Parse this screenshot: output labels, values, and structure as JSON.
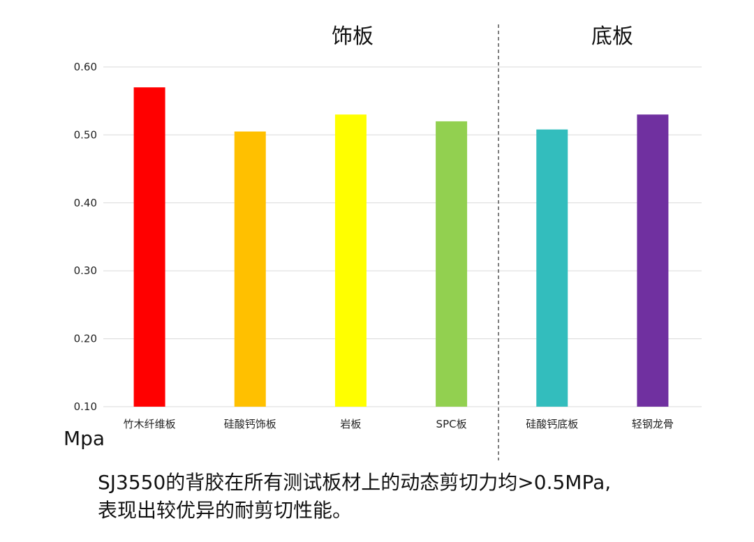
{
  "chart_data": {
    "type": "bar",
    "categories": [
      "竹木纤维板",
      "硅酸钙饰板",
      "岩板",
      "SPC板",
      "硅酸钙底板",
      "轻钢龙骨"
    ],
    "values": [
      0.57,
      0.505,
      0.53,
      0.52,
      0.508,
      0.53
    ],
    "colors": [
      "#ff0000",
      "#ffc000",
      "#ffff00",
      "#92d050",
      "#33bdbd",
      "#7030a0"
    ],
    "ylabel": "Mpa",
    "ylim": [
      0.1,
      0.6
    ],
    "yticks": [
      "0.60",
      "0.50",
      "0.40",
      "0.30",
      "0.20",
      "0.10"
    ],
    "ytick_values": [
      0.6,
      0.5,
      0.4,
      0.3,
      0.2,
      0.1
    ],
    "grid": true,
    "groups": [
      {
        "label": "饰板",
        "categories": [
          "竹木纤维板",
          "硅酸钙饰板",
          "岩板",
          "SPC板"
        ]
      },
      {
        "label": "底板",
        "categories": [
          "硅酸钙底板",
          "轻钢龙骨"
        ]
      }
    ]
  },
  "caption": {
    "line1": "SJ3550的背胶在所有测试板材上的动态剪切力均>0.5MPa,",
    "line2": "表现出较优异的耐剪切性能。"
  }
}
